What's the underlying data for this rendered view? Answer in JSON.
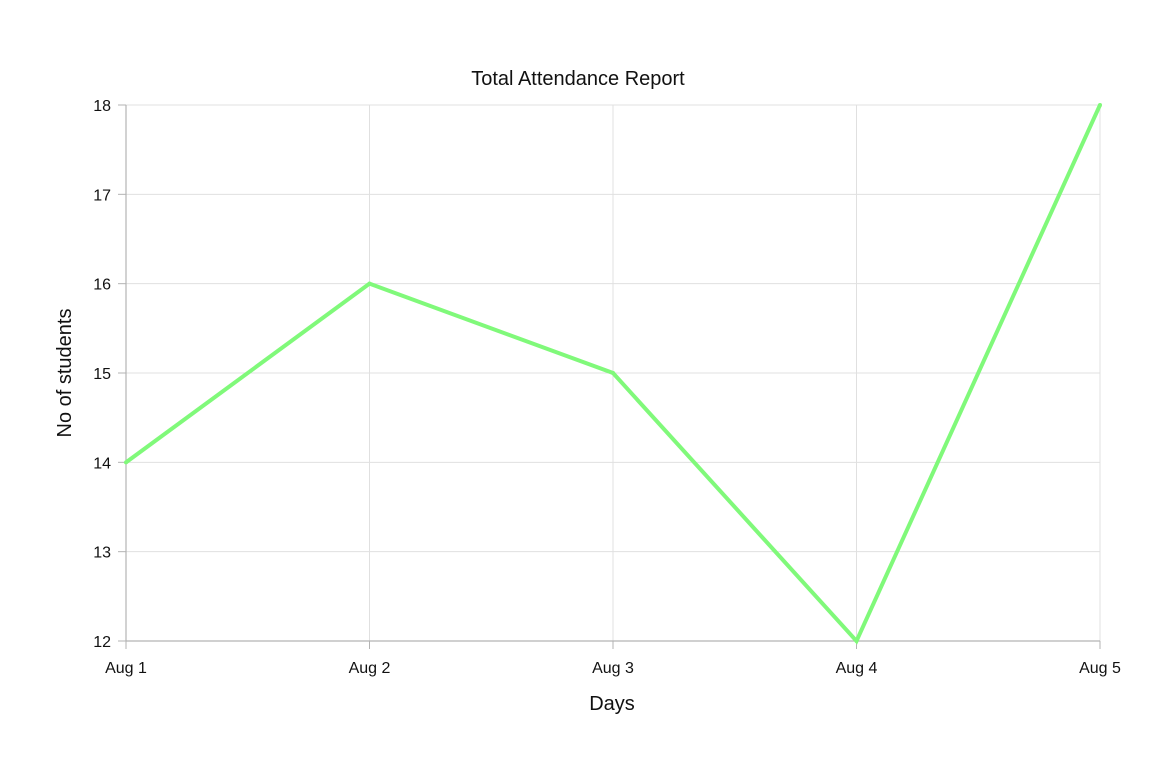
{
  "chart_data": {
    "type": "line",
    "title": "Total Attendance Report",
    "xlabel": "Days",
    "ylabel": "No of students",
    "categories": [
      "Aug 1",
      "Aug 2",
      "Aug 3",
      "Aug 4",
      "Aug 5"
    ],
    "series": [
      {
        "values": [
          14,
          16,
          15,
          12,
          18
        ]
      }
    ],
    "ylim": [
      12,
      18
    ],
    "yticks": [
      12,
      13,
      14,
      15,
      16,
      17,
      18
    ],
    "grid": true,
    "legend": "none",
    "colors": {
      "line": "#80f97a",
      "grid": "#e0e0e0",
      "axis": "#b3b3b3",
      "text": "#111111"
    }
  }
}
